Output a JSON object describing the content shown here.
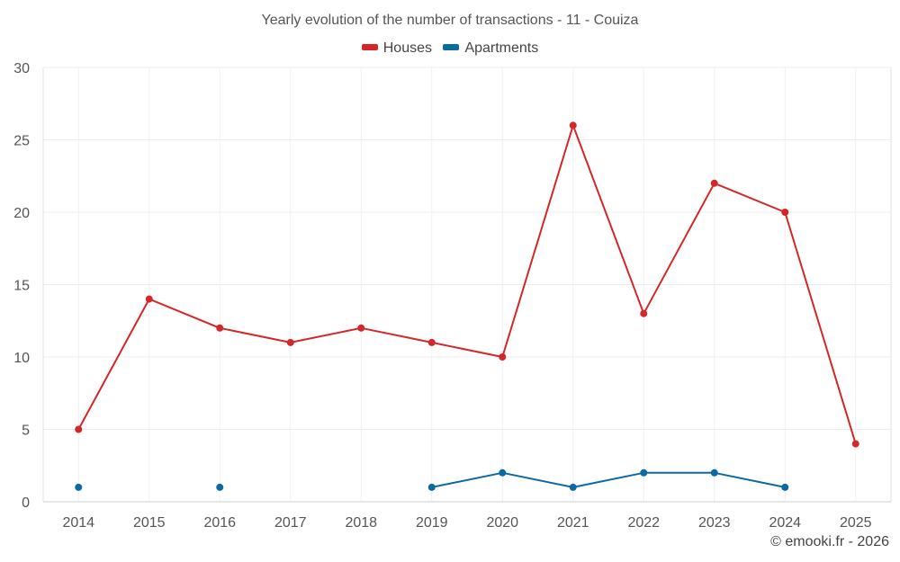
{
  "chart_data": {
    "type": "line",
    "title": "Yearly evolution of the number of transactions - 11 - Couiza",
    "categories": [
      "2014",
      "2015",
      "2016",
      "2017",
      "2018",
      "2019",
      "2020",
      "2021",
      "2022",
      "2023",
      "2024",
      "2025"
    ],
    "series": [
      {
        "name": "Houses",
        "color": "#d62728",
        "values": [
          5,
          14,
          12,
          11,
          12,
          11,
          10,
          26,
          13,
          22,
          20,
          4
        ]
      },
      {
        "name": "Apartments",
        "color": "#0b6aa2",
        "values": [
          1,
          null,
          1,
          null,
          null,
          1,
          2,
          1,
          2,
          2,
          1,
          null
        ]
      }
    ],
    "ylim": [
      0,
      30
    ],
    "yticks": [
      0,
      5,
      10,
      15,
      20,
      25,
      30
    ],
    "grid": true,
    "legend_position": "top-center",
    "xlabel": "",
    "ylabel": ""
  },
  "credit": "© emooki.fr - 2026"
}
